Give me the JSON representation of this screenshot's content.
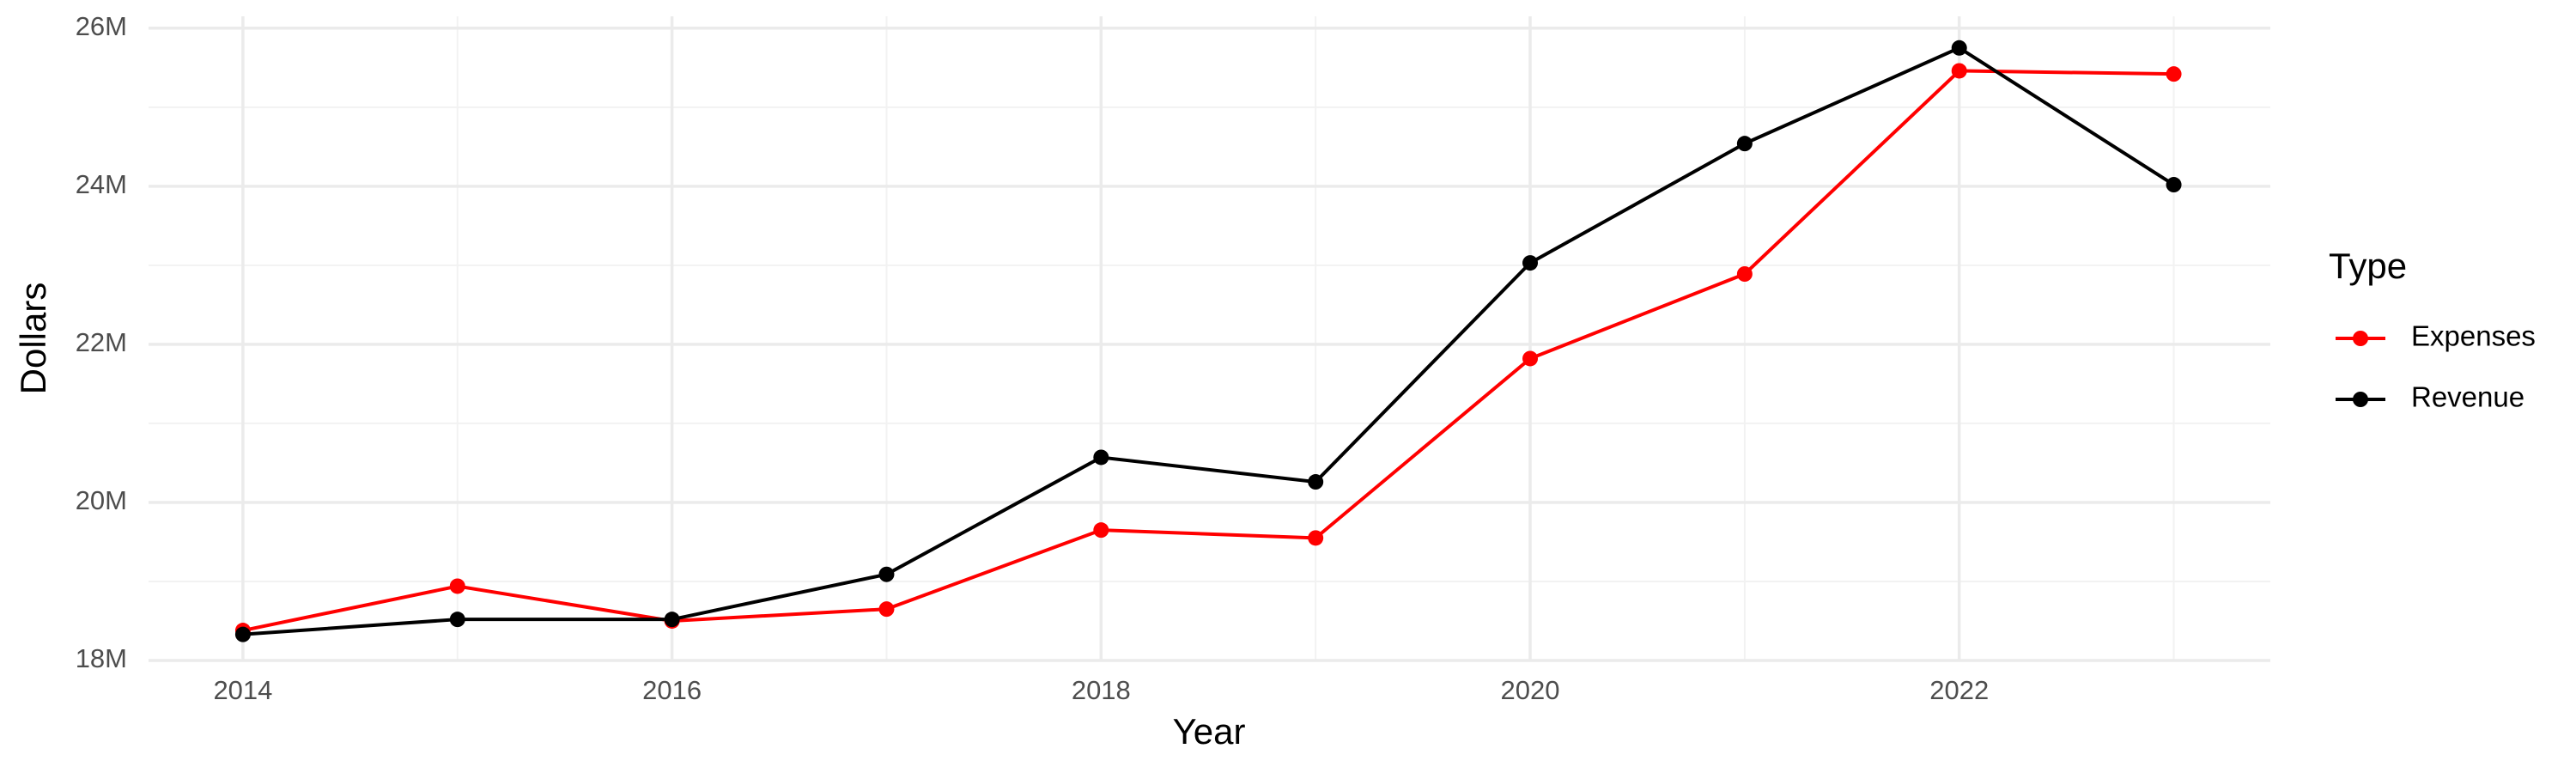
{
  "chart_data": {
    "type": "line",
    "x_label": "Year",
    "y_label": "Dollars",
    "x": [
      2014,
      2015,
      2016,
      2017,
      2018,
      2019,
      2020,
      2021,
      2022,
      2023
    ],
    "series": [
      {
        "name": "Expenses",
        "color": "#ff0000",
        "values": [
          18380000,
          18940000,
          18500000,
          18650000,
          19650000,
          19550000,
          21820000,
          22890000,
          25460000,
          25420000
        ]
      },
      {
        "name": "Revenue",
        "color": "#000000",
        "values": [
          18330000,
          18520000,
          18520000,
          19090000,
          20570000,
          20260000,
          23030000,
          24540000,
          25750000,
          24020000
        ]
      }
    ],
    "xlim": [
      2013.56,
      2023.45
    ],
    "xticks": [
      2014,
      2016,
      2018,
      2020,
      2022
    ],
    "xminorticks": [
      2015,
      2017,
      2019,
      2021,
      2023
    ],
    "ylim": [
      18000000,
      26150000
    ],
    "yticks": [
      {
        "value": 18000000,
        "label": "18M"
      },
      {
        "value": 20000000,
        "label": "20M"
      },
      {
        "value": 22000000,
        "label": "22M"
      },
      {
        "value": 24000000,
        "label": "24M"
      },
      {
        "value": 26000000,
        "label": "26M"
      }
    ],
    "yminorticks": [
      19000000,
      21000000,
      23000000,
      25000000
    ],
    "grid": true,
    "legend_title": "Type",
    "legend_position": "right"
  }
}
